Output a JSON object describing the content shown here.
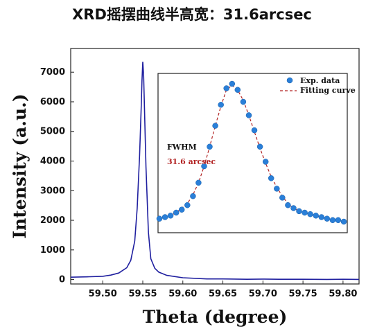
{
  "chart_data": [
    {
      "type": "line",
      "title": "XRD摇摆曲线半高宽：31.6arcsec",
      "xlabel": "Theta (degree)",
      "ylabel": "Intensity (a.u.)",
      "xlim": [
        59.46,
        59.82
      ],
      "ylim": [
        -150,
        7800
      ],
      "xticks": [
        59.5,
        59.55,
        59.6,
        59.65,
        59.7,
        59.75,
        59.8
      ],
      "xtick_labels": [
        "59.50",
        "59.55",
        "59.60",
        "59.65",
        "59.70",
        "59.75",
        "59.80"
      ],
      "yticks": [
        0,
        1000,
        2000,
        3000,
        4000,
        5000,
        6000,
        7000
      ],
      "ytick_labels": [
        "0",
        "1000",
        "2000",
        "3000",
        "4000",
        "5000",
        "6000",
        "7000"
      ],
      "grid": false,
      "color": "#1f1f9f",
      "series": [
        {
          "x": [
            59.46,
            59.48,
            59.5,
            59.51,
            59.52,
            59.53,
            59.535,
            59.54,
            59.543,
            59.546,
            59.548,
            59.549,
            59.55,
            59.551,
            59.552,
            59.554,
            59.557,
            59.56,
            59.565,
            59.57,
            59.58,
            59.6,
            59.63,
            59.65,
            59.68,
            59.7,
            59.72,
            59.75,
            59.78,
            59.8,
            59.82
          ],
          "values": [
            80,
            90,
            110,
            150,
            220,
            400,
            650,
            1300,
            2400,
            4200,
            5800,
            6700,
            7350,
            6900,
            5900,
            3800,
            1600,
            700,
            380,
            250,
            140,
            60,
            20,
            20,
            10,
            15,
            10,
            10,
            5,
            10,
            5
          ]
        }
      ]
    },
    {
      "type": "scatter",
      "inset": true,
      "series": [
        {
          "name": "Exp. data",
          "color": "#2a7fd8",
          "x": [
            -13,
            -12,
            -11,
            -10,
            -9,
            -8,
            -7,
            -6,
            -5,
            -4,
            -3,
            -2,
            -1,
            0,
            1,
            2,
            3,
            4,
            5,
            6,
            7,
            8,
            9,
            10,
            11,
            12,
            13,
            14,
            15,
            16,
            17,
            18,
            19,
            20
          ],
          "values": [
            0.1,
            0.11,
            0.12,
            0.14,
            0.16,
            0.19,
            0.25,
            0.34,
            0.45,
            0.58,
            0.72,
            0.86,
            0.97,
            1.0,
            0.96,
            0.88,
            0.79,
            0.69,
            0.58,
            0.48,
            0.37,
            0.3,
            0.24,
            0.19,
            0.17,
            0.15,
            0.14,
            0.13,
            0.12,
            0.11,
            0.1,
            0.09,
            0.09,
            0.08
          ]
        },
        {
          "name": "Fitting curve",
          "color": "#b22222",
          "x": [
            -13,
            -12,
            -11,
            -10,
            -9,
            -8,
            -7,
            -6,
            -5,
            -4,
            -3,
            -2,
            -1,
            0,
            1,
            2,
            3,
            4,
            5,
            6,
            7,
            8,
            9,
            10,
            11,
            12,
            13,
            14,
            15,
            16,
            17,
            18,
            19,
            20
          ],
          "values": [
            0.1,
            0.11,
            0.12,
            0.14,
            0.17,
            0.2,
            0.26,
            0.34,
            0.45,
            0.58,
            0.72,
            0.85,
            0.96,
            0.99,
            0.96,
            0.89,
            0.79,
            0.68,
            0.57,
            0.47,
            0.38,
            0.31,
            0.25,
            0.2,
            0.17,
            0.15,
            0.14,
            0.13,
            0.12,
            0.11,
            0.1,
            0.09,
            0.09,
            0.08
          ]
        }
      ],
      "annotations": [
        "FWHM",
        "31.6 arcsec"
      ]
    }
  ]
}
